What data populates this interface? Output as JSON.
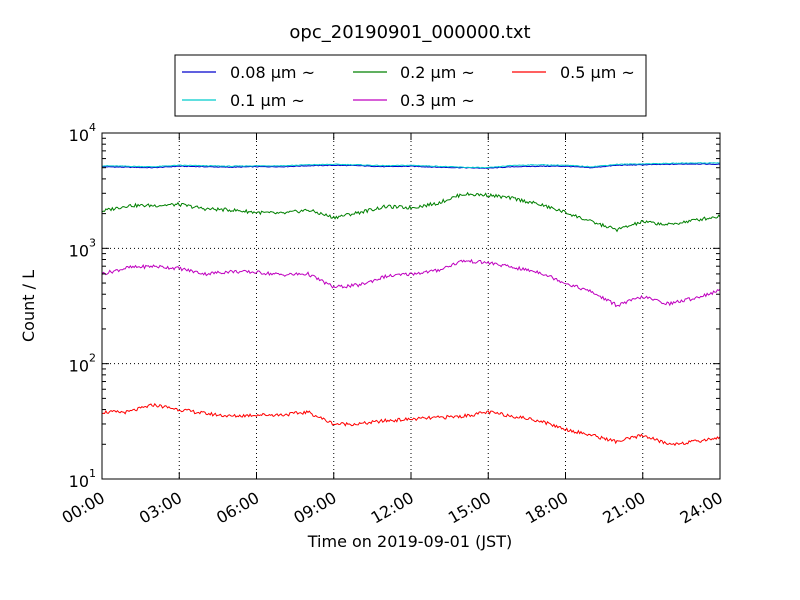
{
  "chart_data": {
    "type": "line",
    "title": "opc_20190901_000000.txt",
    "xlabel": "Time on 2019-09-01 (JST)",
    "ylabel": "Count / L",
    "yscale": "log",
    "ylim": [
      10,
      10000
    ],
    "xlim_hours": [
      0,
      24
    ],
    "grid": true,
    "legend_position": "top-center, above plot",
    "x_ticks": [
      "00:00",
      "03:00",
      "06:00",
      "09:00",
      "12:00",
      "15:00",
      "18:00",
      "21:00",
      "24:00"
    ],
    "y_ticks": [
      {
        "value": 10,
        "base": "10",
        "exp": "1"
      },
      {
        "value": 100,
        "base": "10",
        "exp": "2"
      },
      {
        "value": 1000,
        "base": "10",
        "exp": "3"
      },
      {
        "value": 10000,
        "base": "10",
        "exp": "4"
      }
    ],
    "x_hours": [
      0,
      1,
      2,
      3,
      4,
      5,
      6,
      7,
      8,
      9,
      10,
      11,
      12,
      13,
      14,
      15,
      16,
      17,
      18,
      19,
      20,
      21,
      22,
      23,
      24
    ],
    "series": [
      {
        "name": "0.08 µm ~",
        "color": "#0000cc",
        "values": [
          5100,
          5050,
          5000,
          5150,
          5100,
          5050,
          5100,
          5100,
          5200,
          5250,
          5200,
          5100,
          5150,
          5050,
          5000,
          4950,
          5100,
          5150,
          5150,
          5000,
          5250,
          5300,
          5350,
          5400,
          5350
        ]
      },
      {
        "name": "0.1 µm ~",
        "color": "#00cccc",
        "values": [
          5200,
          5150,
          5100,
          5250,
          5200,
          5150,
          5200,
          5200,
          5300,
          5350,
          5300,
          5200,
          5250,
          5150,
          5050,
          5000,
          5250,
          5300,
          5250,
          5100,
          5350,
          5400,
          5450,
          5500,
          5500
        ]
      },
      {
        "name": "0.2 µm ~",
        "color": "#008000",
        "values": [
          2100,
          2350,
          2350,
          2400,
          2200,
          2150,
          2050,
          2000,
          2150,
          1850,
          2050,
          2300,
          2250,
          2450,
          2950,
          2900,
          2700,
          2400,
          2050,
          1700,
          1450,
          1700,
          1600,
          1750,
          1900
        ]
      },
      {
        "name": "0.3 µm ~",
        "color": "#bf00bf",
        "values": [
          600,
          680,
          700,
          670,
          600,
          630,
          620,
          590,
          600,
          460,
          480,
          570,
          600,
          640,
          780,
          750,
          680,
          620,
          500,
          420,
          320,
          380,
          330,
          370,
          430
        ]
      },
      {
        "name": "0.5 µm ~",
        "color": "#ff0000",
        "values": [
          38,
          38,
          44,
          40,
          37,
          35,
          36,
          36,
          38,
          30,
          30,
          32,
          33,
          34,
          35,
          38,
          35,
          32,
          27,
          24,
          21,
          24,
          20,
          21,
          23
        ]
      }
    ]
  }
}
